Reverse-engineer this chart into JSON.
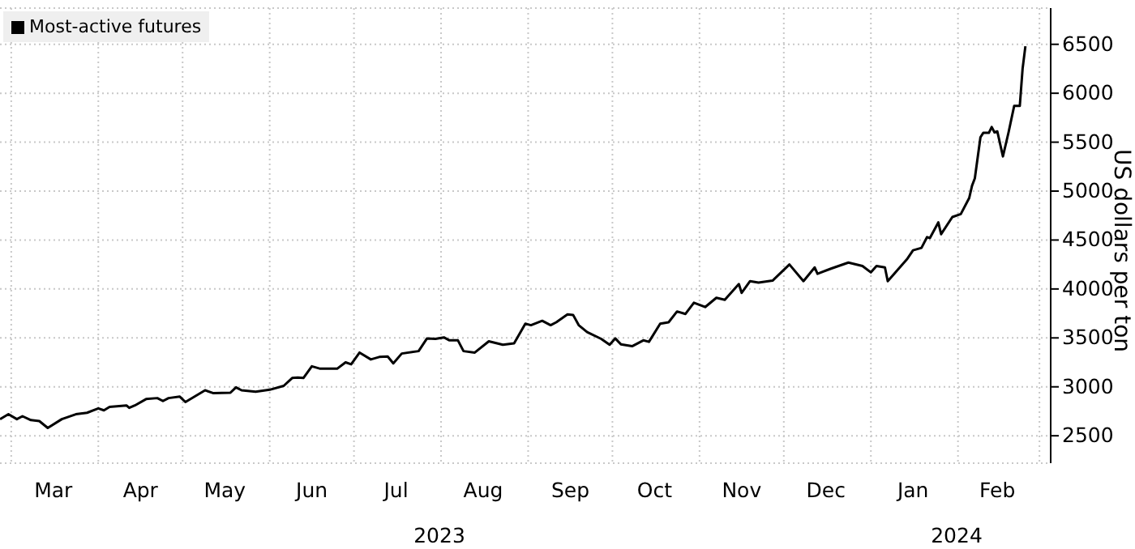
{
  "chart_data": {
    "type": "line",
    "ylabel": "US dollars per ton",
    "legend": "top left",
    "grid": true,
    "line_style": "solid",
    "marker": "none",
    "xlim": [
      "2023-02-25",
      "2024-03-05"
    ],
    "xticks": [
      {
        "value": "2023-03-01",
        "label": null
      },
      {
        "value": "2023-03-16",
        "label": "Mar"
      },
      {
        "value": "2023-04-01",
        "label": null
      },
      {
        "value": "2023-04-16",
        "label": "Apr"
      },
      {
        "value": "2023-05-01",
        "label": null
      },
      {
        "value": "2023-05-16",
        "label": "May"
      },
      {
        "value": "2023-06-01",
        "label": null
      },
      {
        "value": "2023-06-16",
        "label": "Jun"
      },
      {
        "value": "2023-07-01",
        "label": null
      },
      {
        "value": "2023-07-16",
        "label": "Jul"
      },
      {
        "value": "2023-08-01",
        "label": null
      },
      {
        "value": "2023-08-16",
        "label": "Aug"
      },
      {
        "value": "2023-09-01",
        "label": null
      },
      {
        "value": "2023-09-16",
        "label": "Sep"
      },
      {
        "value": "2023-10-01",
        "label": null
      },
      {
        "value": "2023-10-16",
        "label": "Oct"
      },
      {
        "value": "2023-11-01",
        "label": null
      },
      {
        "value": "2023-11-16",
        "label": "Nov"
      },
      {
        "value": "2023-12-01",
        "label": null
      },
      {
        "value": "2023-12-16",
        "label": "Dec"
      },
      {
        "value": "2024-01-01",
        "label": null
      },
      {
        "value": "2024-01-16",
        "label": "Jan"
      },
      {
        "value": "2024-02-01",
        "label": null
      },
      {
        "value": "2024-02-15",
        "label": "Feb"
      },
      {
        "value": "2024-03-01",
        "label": null
      }
    ],
    "ylim": [
      2220,
      6870
    ],
    "annotations": [
      "2023",
      "2024"
    ],
    "yticks": [
      2500,
      3000,
      3500,
      4000,
      4500,
      5000,
      5500,
      6000,
      6500
    ],
    "x": [
      "2023-02-25",
      "2023-02-28",
      "2023-03-03",
      "2023-03-05",
      "2023-03-08",
      "2023-03-11",
      "2023-03-14",
      "2023-03-19",
      "2023-03-24",
      "2023-03-28",
      "2023-04-01",
      "2023-04-03",
      "2023-04-05",
      "2023-04-11",
      "2023-04-12",
      "2023-04-14",
      "2023-04-18",
      "2023-04-22",
      "2023-04-24",
      "2023-04-26",
      "2023-04-30",
      "2023-05-02",
      "2023-05-09",
      "2023-05-12",
      "2023-05-18",
      "2023-05-20",
      "2023-05-22",
      "2023-05-27",
      "2023-06-01",
      "2023-06-06",
      "2023-06-09",
      "2023-06-11",
      "2023-06-13",
      "2023-06-16",
      "2023-06-19",
      "2023-06-25",
      "2023-06-28",
      "2023-06-30",
      "2023-07-03",
      "2023-07-07",
      "2023-07-10",
      "2023-07-13",
      "2023-07-15",
      "2023-07-18",
      "2023-07-24",
      "2023-07-27",
      "2023-07-30",
      "2023-08-02",
      "2023-08-04",
      "2023-08-07",
      "2023-08-09",
      "2023-08-13",
      "2023-08-18",
      "2023-08-23",
      "2023-08-27",
      "2023-08-31",
      "2023-09-02",
      "2023-09-06",
      "2023-09-09",
      "2023-09-11",
      "2023-09-15",
      "2023-09-17",
      "2023-09-19",
      "2023-09-22",
      "2023-09-27",
      "2023-09-30",
      "2023-10-02",
      "2023-10-04",
      "2023-10-08",
      "2023-10-12",
      "2023-10-14",
      "2023-10-18",
      "2023-10-21",
      "2023-10-24",
      "2023-10-27",
      "2023-10-30",
      "2023-11-03",
      "2023-11-07",
      "2023-11-10",
      "2023-11-15",
      "2023-11-16",
      "2023-11-19",
      "2023-11-22",
      "2023-11-27",
      "2023-12-03",
      "2023-12-08",
      "2023-12-12",
      "2023-12-13",
      "2023-12-18",
      "2023-12-24",
      "2023-12-29",
      "2024-01-01",
      "2024-01-03",
      "2024-01-06",
      "2024-01-07",
      "2024-01-14",
      "2024-01-16",
      "2024-01-19",
      "2024-01-21",
      "2024-01-22",
      "2024-01-25",
      "2024-01-26",
      "2024-01-30",
      "2024-02-02",
      "2024-02-05",
      "2024-02-06",
      "2024-02-07",
      "2024-02-09",
      "2024-02-10",
      "2024-02-12",
      "2024-02-13",
      "2024-02-14",
      "2024-02-15",
      "2024-02-17",
      "2024-02-19",
      "2024-02-21",
      "2024-02-23",
      "2024-02-24",
      "2024-02-25"
    ],
    "series": [
      {
        "name": "Most-active futures",
        "color": "#000000",
        "values": [
          2670,
          2720,
          2670,
          2700,
          2660,
          2650,
          2580,
          2670,
          2720,
          2735,
          2780,
          2760,
          2795,
          2810,
          2785,
          2810,
          2875,
          2885,
          2855,
          2885,
          2900,
          2845,
          2965,
          2935,
          2940,
          2995,
          2965,
          2950,
          2970,
          3010,
          3090,
          3095,
          3090,
          3210,
          3185,
          3185,
          3250,
          3230,
          3350,
          3280,
          3305,
          3310,
          3240,
          3340,
          3365,
          3495,
          3490,
          3505,
          3475,
          3475,
          3365,
          3350,
          3465,
          3430,
          3445,
          3645,
          3630,
          3675,
          3630,
          3660,
          3740,
          3735,
          3630,
          3560,
          3490,
          3430,
          3495,
          3435,
          3415,
          3475,
          3460,
          3645,
          3660,
          3770,
          3745,
          3860,
          3815,
          3910,
          3890,
          4050,
          3960,
          4080,
          4065,
          4085,
          4250,
          4080,
          4220,
          4155,
          4210,
          4270,
          4235,
          4170,
          4235,
          4220,
          4080,
          4310,
          4395,
          4420,
          4530,
          4520,
          4680,
          4560,
          4735,
          4765,
          4930,
          5055,
          5130,
          5550,
          5595,
          5595,
          5655,
          5600,
          5610,
          5355,
          5600,
          5870,
          5870,
          6250,
          6480
        ]
      }
    ]
  }
}
